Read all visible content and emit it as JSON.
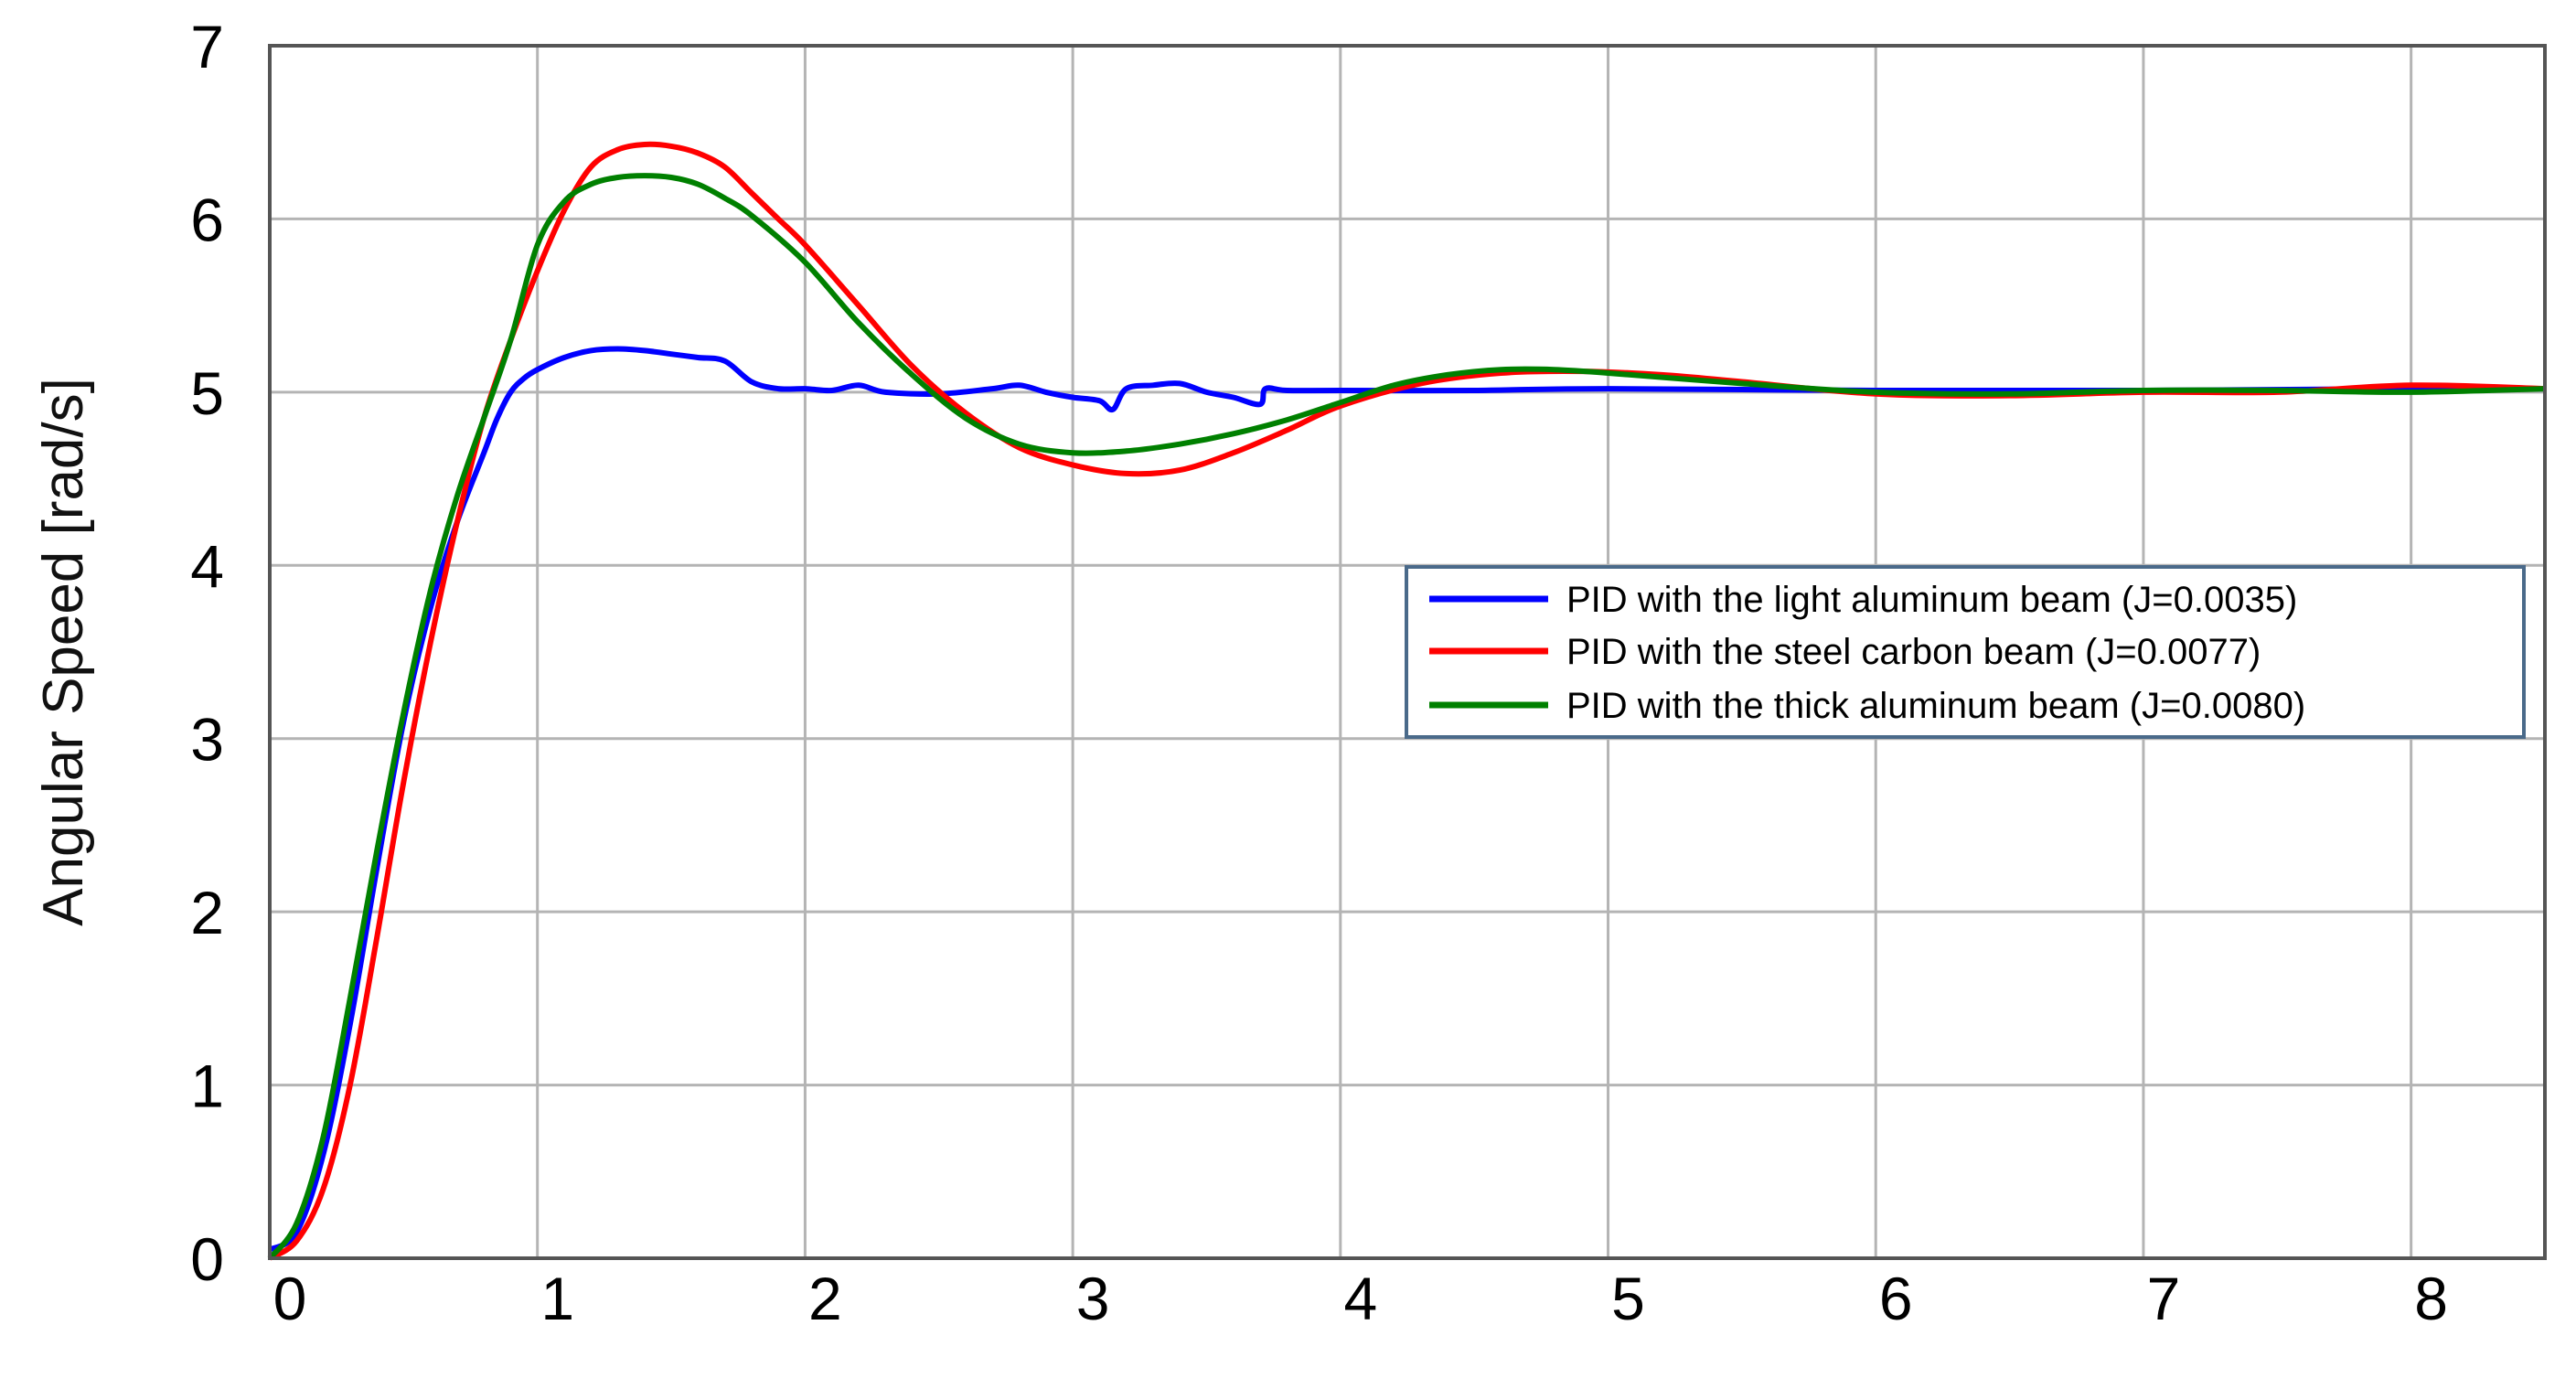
{
  "chart_data": {
    "type": "line",
    "title": "",
    "xlabel": "",
    "ylabel": "Angular Speed [rad/s]",
    "xlim": [
      0,
      8.5
    ],
    "ylim": [
      0,
      7
    ],
    "xticks": [
      "0",
      "1",
      "2",
      "3",
      "4",
      "5",
      "6",
      "7",
      "8"
    ],
    "yticks": [
      "0",
      "1",
      "2",
      "3",
      "4",
      "5",
      "6",
      "7"
    ],
    "grid": true,
    "legend_position": "center-right",
    "series": [
      {
        "name": "PID with the light aluminum beam (J=0.0035)",
        "color": "#0000ff",
        "x": [
          0,
          0.1,
          0.2,
          0.3,
          0.4,
          0.5,
          0.6,
          0.7,
          0.8,
          0.85,
          0.9,
          0.95,
          1.0,
          1.1,
          1.2,
          1.3,
          1.4,
          1.5,
          1.6,
          1.7,
          1.8,
          1.9,
          2.0,
          2.1,
          2.2,
          2.3,
          2.5,
          2.7,
          2.8,
          2.9,
          3.0,
          3.1,
          3.15,
          3.2,
          3.3,
          3.4,
          3.5,
          3.6,
          3.7,
          3.72,
          3.8,
          4.0,
          4.5,
          5.0,
          6.0,
          7.0,
          8.0,
          8.5
        ],
        "y": [
          0.05,
          0.15,
          0.6,
          1.35,
          2.25,
          3.1,
          3.75,
          4.25,
          4.65,
          4.85,
          5.0,
          5.08,
          5.13,
          5.2,
          5.24,
          5.25,
          5.24,
          5.22,
          5.2,
          5.18,
          5.06,
          5.02,
          5.02,
          5.01,
          5.04,
          5.0,
          4.99,
          5.02,
          5.04,
          5.0,
          4.97,
          4.95,
          4.9,
          5.02,
          5.04,
          5.05,
          5.0,
          4.97,
          4.93,
          5.02,
          5.01,
          5.01,
          5.01,
          5.02,
          5.01,
          5.01,
          5.02,
          5.02
        ]
      },
      {
        "name": "PID with the steel carbon beam (J=0.0077)",
        "color": "#ff0000",
        "x": [
          0,
          0.1,
          0.2,
          0.3,
          0.4,
          0.5,
          0.6,
          0.7,
          0.8,
          0.9,
          1.0,
          1.1,
          1.2,
          1.3,
          1.4,
          1.5,
          1.6,
          1.7,
          1.8,
          1.9,
          2.0,
          2.2,
          2.4,
          2.6,
          2.8,
          3.0,
          3.2,
          3.4,
          3.6,
          3.8,
          4.0,
          4.3,
          4.6,
          4.9,
          5.2,
          5.5,
          6.0,
          6.5,
          7.0,
          7.5,
          8.0,
          8.5
        ],
        "y": [
          0.0,
          0.1,
          0.4,
          1.0,
          1.85,
          2.75,
          3.55,
          4.25,
          4.85,
          5.3,
          5.7,
          6.05,
          6.3,
          6.4,
          6.43,
          6.42,
          6.38,
          6.3,
          6.15,
          6.0,
          5.85,
          5.5,
          5.15,
          4.88,
          4.68,
          4.58,
          4.53,
          4.55,
          4.65,
          4.78,
          4.92,
          5.05,
          5.11,
          5.12,
          5.1,
          5.06,
          4.99,
          4.98,
          5.0,
          5.0,
          5.04,
          5.02
        ]
      },
      {
        "name": "PID with the thick aluminum beam (J=0.0080)",
        "color": "#008000",
        "x": [
          0,
          0.1,
          0.2,
          0.3,
          0.4,
          0.5,
          0.6,
          0.7,
          0.8,
          0.9,
          1.0,
          1.1,
          1.2,
          1.3,
          1.4,
          1.5,
          1.6,
          1.7,
          1.8,
          2.0,
          2.2,
          2.4,
          2.6,
          2.8,
          3.0,
          3.2,
          3.4,
          3.6,
          3.8,
          4.0,
          4.2,
          4.4,
          4.6,
          4.8,
          5.0,
          5.5,
          6.0,
          6.5,
          7.0,
          7.5,
          8.0,
          8.5
        ],
        "y": [
          0.0,
          0.2,
          0.7,
          1.5,
          2.35,
          3.15,
          3.85,
          4.4,
          4.85,
          5.3,
          5.85,
          6.1,
          6.2,
          6.24,
          6.25,
          6.24,
          6.2,
          6.12,
          6.02,
          5.75,
          5.4,
          5.1,
          4.85,
          4.7,
          4.65,
          4.66,
          4.7,
          4.76,
          4.84,
          4.94,
          5.04,
          5.1,
          5.13,
          5.13,
          5.11,
          5.05,
          5.0,
          4.99,
          5.01,
          5.01,
          5.0,
          5.02
        ]
      }
    ]
  }
}
